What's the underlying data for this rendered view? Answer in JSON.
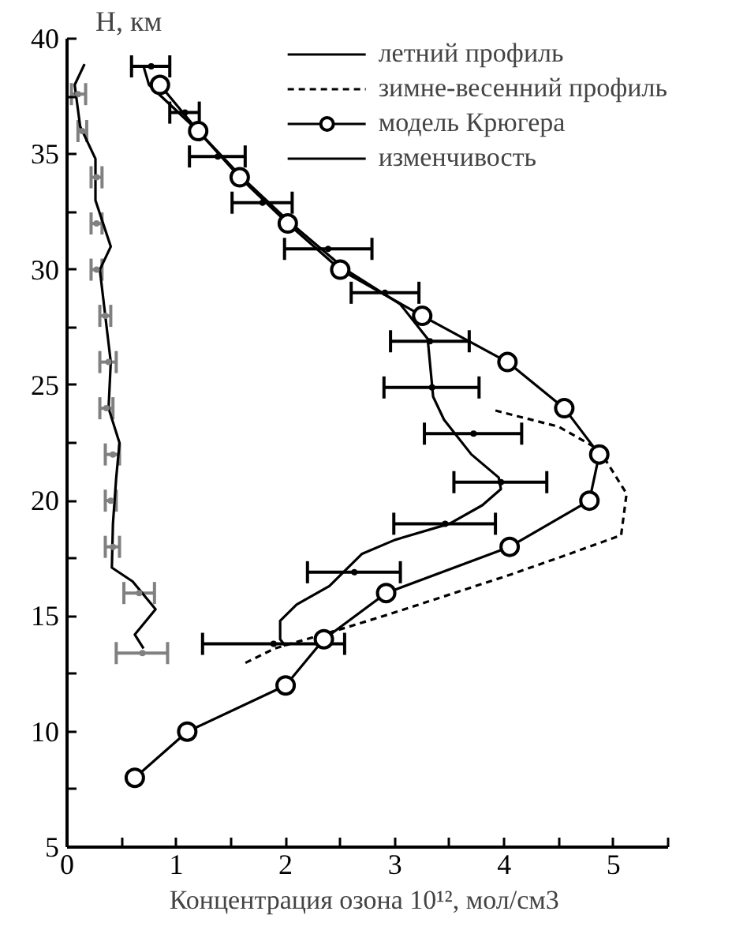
{
  "chart_data": {
    "type": "line",
    "xlabel": "Концентрация озона  10¹², мол/см3",
    "ylabel": "H, км",
    "xlim": [
      0,
      5.5
    ],
    "ylim": [
      5,
      40
    ],
    "xticks": [
      0,
      {
        "value": 0.5,
        "label": null
      },
      1,
      {
        "value": 1.5,
        "label": null
      },
      2,
      {
        "value": 2.5,
        "label": null
      },
      3,
      {
        "value": 3.5,
        "label": null
      },
      4,
      {
        "value": 4.5,
        "label": null
      },
      5,
      {
        "value": 5.5,
        "label": null
      }
    ],
    "yticks": [
      5,
      {
        "value": 7.5,
        "label": null
      },
      10,
      {
        "value": 12.5,
        "label": null
      },
      15,
      {
        "value": 17.5,
        "label": null
      },
      20,
      {
        "value": 22.5,
        "label": null
      },
      25,
      {
        "value": 27.5,
        "label": null
      },
      30,
      {
        "value": 32.5,
        "label": null
      },
      35,
      {
        "value": 37.5,
        "label": null
      },
      40
    ],
    "grid": false,
    "legend": "top right",
    "series": [
      {
        "name": "летний профиль",
        "line_style": "solid",
        "marker": "none",
        "color": "#000000",
        "x": [
          0.7,
          0.75,
          1.2,
          1.6,
          2.05,
          2.55,
          3.05,
          3.3,
          3.33,
          3.35,
          3.45,
          3.7,
          3.95,
          3.97,
          3.8,
          3.5,
          3.0,
          2.7,
          2.55,
          2.4,
          2.1,
          1.95,
          1.95,
          2.0
        ],
        "values": [
          38.8,
          38,
          36,
          34,
          32,
          30,
          28.5,
          27,
          25.5,
          24.5,
          23.5,
          22,
          21,
          20.5,
          19.8,
          19,
          18.3,
          17.7,
          17,
          16.3,
          15.5,
          14.8,
          14,
          13.7
        ]
      },
      {
        "name": "зимне-весенний профиль",
        "line_style": "dashed",
        "marker": "none",
        "color": "#000000",
        "x": [
          3.92,
          4.5,
          4.87,
          5.12,
          5.07,
          4.6,
          4.06,
          2.96,
          2.55,
          1.9,
          1.6
        ],
        "values": [
          23.9,
          23.2,
          22.2,
          20.3,
          18.5,
          17.7,
          16.8,
          15.1,
          14.5,
          13.6,
          12.9
        ]
      },
      {
        "name": "модель Крюгера",
        "line_style": "solid",
        "marker": "circle",
        "color": "#000000",
        "x": [
          0.62,
          1.1,
          2.0,
          2.35,
          2.92,
          4.05,
          4.78,
          4.87,
          4.55,
          4.03,
          3.25,
          2.5,
          2.02,
          1.58,
          1.2,
          0.85
        ],
        "values": [
          8,
          10,
          12,
          14,
          16,
          18,
          20,
          22,
          24,
          26,
          28,
          30,
          32,
          34,
          36,
          38
        ]
      },
      {
        "name": "изменчивость",
        "line_style": "solid",
        "marker": "none",
        "color": "#000000",
        "x": [
          0.16,
          0.07,
          0.12,
          0.26,
          0.26,
          0.4,
          0.3,
          0.35,
          0.4,
          0.38,
          0.48,
          0.45,
          0.42,
          0.41,
          0.6,
          0.81,
          0.62,
          0.7
        ],
        "values": [
          38.9,
          38,
          36.2,
          34.8,
          33,
          31,
          30,
          28,
          26,
          24,
          22.5,
          21,
          19,
          17.1,
          16.5,
          15.3,
          14.2,
          13.6
        ]
      },
      {
        "type": "scatter",
        "color": "#000000",
        "x": [
          0.77,
          1.08,
          1.38,
          1.79,
          2.39,
          2.91,
          3.32,
          3.34,
          3.72,
          3.97,
          3.46,
          2.63,
          1.89
        ],
        "values": [
          38.8,
          36.8,
          34.9,
          32.9,
          30.9,
          29.0,
          26.9,
          24.9,
          22.9,
          20.8,
          19.0,
          16.9,
          13.8
        ],
        "xerrors": [
          [
            0.59,
            0.94
          ],
          [
            0.94,
            1.21
          ],
          [
            1.12,
            1.63
          ],
          [
            1.51,
            2.06
          ],
          [
            1.99,
            2.79
          ],
          [
            2.6,
            3.22
          ],
          [
            2.96,
            3.68
          ],
          [
            2.9,
            3.77
          ],
          [
            3.27,
            4.16
          ],
          [
            3.54,
            4.39
          ],
          [
            2.99,
            3.92
          ],
          [
            2.2,
            3.05
          ],
          [
            1.24,
            2.54
          ]
        ]
      },
      {
        "type": "scatter",
        "color": "#808080",
        "x": [
          0.1,
          0.14,
          0.27,
          0.27,
          0.27,
          0.35,
          0.38,
          0.36,
          0.42,
          0.4,
          0.42,
          0.66,
          0.69
        ],
        "values": [
          37.6,
          36,
          34,
          32,
          30,
          28,
          26,
          24,
          22,
          20,
          18,
          16,
          13.4
        ],
        "xerrors": [
          [
            0.04,
            0.17
          ],
          [
            0.1,
            0.18
          ],
          [
            0.22,
            0.32
          ],
          [
            0.22,
            0.32
          ],
          [
            0.22,
            0.32
          ],
          [
            0.3,
            0.4
          ],
          [
            0.3,
            0.45
          ],
          [
            0.3,
            0.42
          ],
          [
            0.35,
            0.48
          ],
          [
            0.35,
            0.45
          ],
          [
            0.35,
            0.48
          ],
          [
            0.52,
            0.8
          ],
          [
            0.45,
            0.92
          ]
        ]
      }
    ]
  }
}
